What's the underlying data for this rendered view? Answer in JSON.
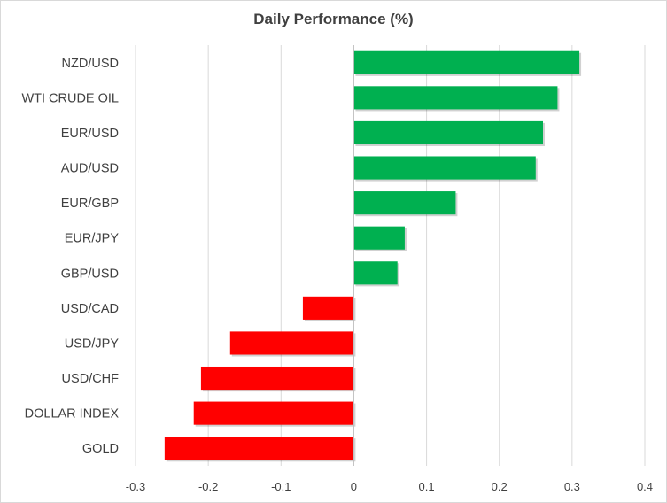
{
  "chart_data": {
    "type": "bar",
    "orientation": "horizontal",
    "title": "Daily Performance (%)",
    "xlabel": "",
    "ylabel": "",
    "xlim": [
      -0.3,
      0.4
    ],
    "xticks": [
      "-0.3",
      "-0.2",
      "-0.1",
      "0",
      "0.1",
      "0.2",
      "0.3",
      "0.4"
    ],
    "grid": "vertical",
    "legend": "none",
    "categories": [
      "NZD/USD",
      "WTI CRUDE OIL",
      "EUR/USD",
      "AUD/USD",
      "EUR/GBP",
      "EUR/JPY",
      "GBP/USD",
      "USD/CAD",
      "USD/JPY",
      "USD/CHF",
      "DOLLAR INDEX",
      "GOLD"
    ],
    "values": [
      0.31,
      0.28,
      0.26,
      0.25,
      0.14,
      0.07,
      0.06,
      -0.07,
      -0.17,
      -0.21,
      -0.22,
      -0.26
    ],
    "positive_color": "#00b050",
    "negative_color": "#ff0000"
  }
}
